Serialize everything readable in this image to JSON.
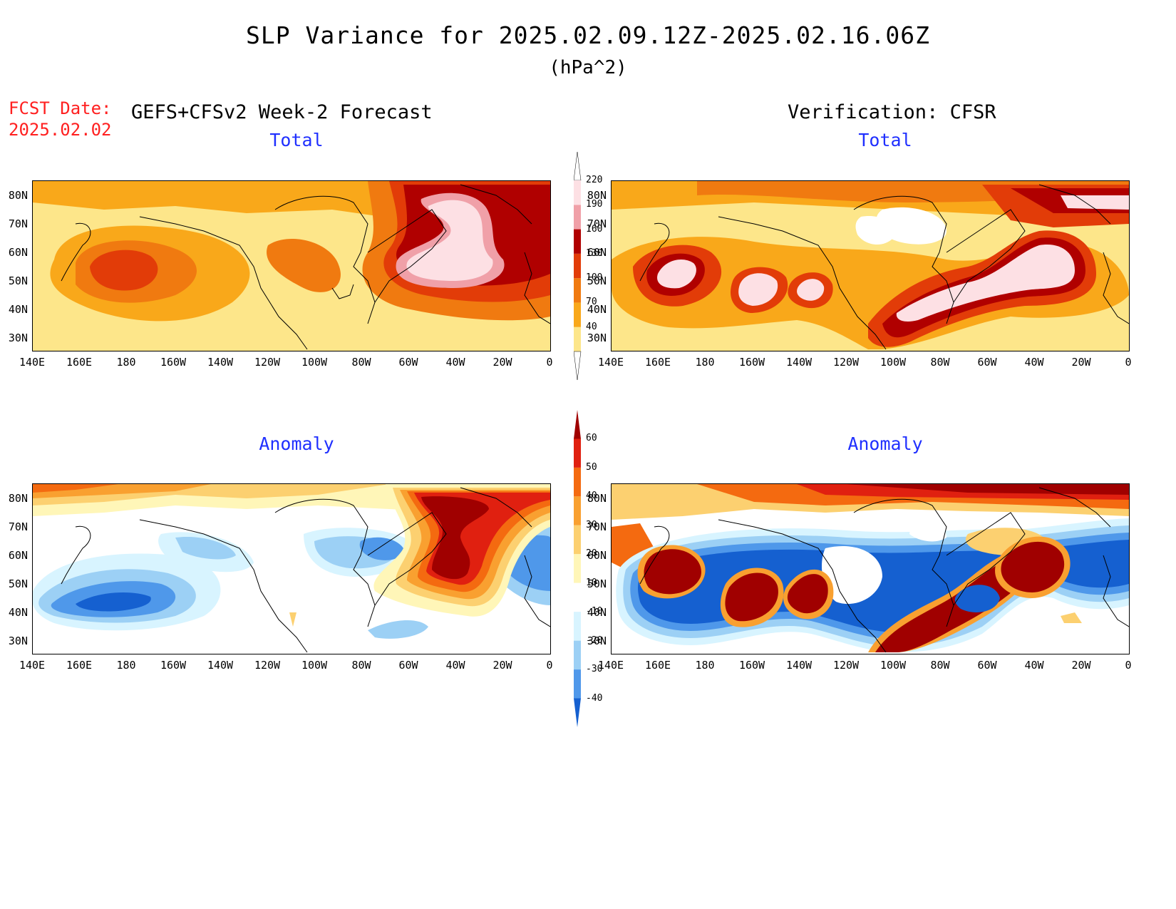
{
  "title": "SLP Variance for 2025.02.09.12Z-2025.02.16.06Z",
  "units": "(hPa^2)",
  "fcst_date_label": "FCST Date:",
  "fcst_date_value": "2025.02.02",
  "forecast_heading": "GEFS+CFSv2 Week-2 Forecast",
  "verification_heading": "Verification: CFSR",
  "panels": [
    {
      "title": "Total"
    },
    {
      "title": "Total"
    },
    {
      "title": "Anomaly"
    },
    {
      "title": "Anomaly"
    }
  ],
  "lat_labels": [
    "80N",
    "70N",
    "60N",
    "50N",
    "40N",
    "30N"
  ],
  "lon_labels": [
    "140E",
    "160E",
    "180",
    "160W",
    "140W",
    "120W",
    "100W",
    "80W",
    "60W",
    "40W",
    "20W",
    "0"
  ],
  "total_colorbar": {
    "levels": [
      "40",
      "70",
      "100",
      "130",
      "160",
      "190",
      "220"
    ],
    "colors": [
      "#fde68a",
      "#f9a81a",
      "#f07a10",
      "#e23c08",
      "#b00000",
      "#f0a0a8",
      "#fde0e4"
    ]
  },
  "anomaly_colorbar": {
    "levels": [
      "60",
      "50",
      "40",
      "30",
      "20",
      "10",
      "-10",
      "-20",
      "-30",
      "-40"
    ],
    "colors": [
      "#a00000",
      "#e02010",
      "#f46a10",
      "#f9a030",
      "#fcd070",
      "#fff6b8",
      "#ffffff",
      "#d8f4ff",
      "#9cd0f5",
      "#4f98ea",
      "#1560d0"
    ]
  }
}
